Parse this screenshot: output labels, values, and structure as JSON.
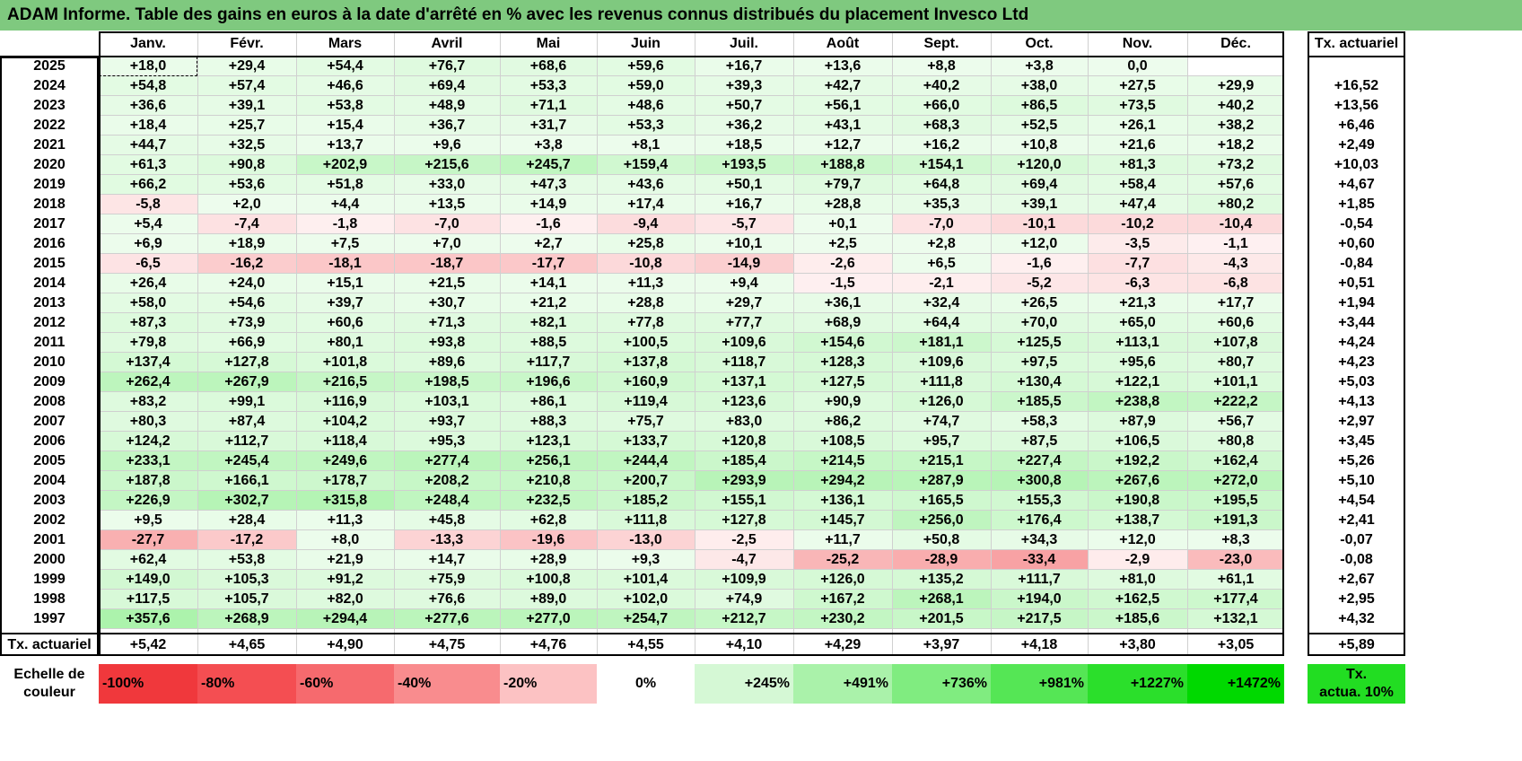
{
  "title": "ADAM Informe. Table des gains en euros à la date d'arrêté en % avec les revenus connus distribués du placement Invesco Ltd",
  "months": [
    "Janv.",
    "Févr.",
    "Mars",
    "Avril",
    "Mai",
    "Juin",
    "Juil.",
    "Août",
    "Sept.",
    "Oct.",
    "Nov.",
    "Déc."
  ],
  "rate_header": "Tx. actuariel",
  "rows": [
    {
      "year": "2025",
      "values": [
        "+18,0",
        "+29,4",
        "+54,4",
        "+76,7",
        "+68,6",
        "+59,6",
        "+16,7",
        "+13,6",
        "+8,8",
        "+3,8",
        "0,0",
        ""
      ],
      "rate": ""
    },
    {
      "year": "2024",
      "values": [
        "+54,8",
        "+57,4",
        "+46,6",
        "+69,4",
        "+53,3",
        "+59,0",
        "+39,3",
        "+42,7",
        "+40,2",
        "+38,0",
        "+27,5",
        "+29,9"
      ],
      "rate": "+16,52"
    },
    {
      "year": "2023",
      "values": [
        "+36,6",
        "+39,1",
        "+53,8",
        "+48,9",
        "+71,1",
        "+48,6",
        "+50,7",
        "+56,1",
        "+66,0",
        "+86,5",
        "+73,5",
        "+40,2"
      ],
      "rate": "+13,56"
    },
    {
      "year": "2022",
      "values": [
        "+18,4",
        "+25,7",
        "+15,4",
        "+36,7",
        "+31,7",
        "+53,3",
        "+36,2",
        "+43,1",
        "+68,3",
        "+52,5",
        "+26,1",
        "+38,2"
      ],
      "rate": "+6,46"
    },
    {
      "year": "2021",
      "values": [
        "+44,7",
        "+32,5",
        "+13,7",
        "+9,6",
        "+3,8",
        "+8,1",
        "+18,5",
        "+12,7",
        "+16,2",
        "+10,8",
        "+21,6",
        "+18,2"
      ],
      "rate": "+2,49"
    },
    {
      "year": "2020",
      "values": [
        "+61,3",
        "+90,8",
        "+202,9",
        "+215,6",
        "+245,7",
        "+159,4",
        "+193,5",
        "+188,8",
        "+154,1",
        "+120,0",
        "+81,3",
        "+73,2"
      ],
      "rate": "+10,03"
    },
    {
      "year": "2019",
      "values": [
        "+66,2",
        "+53,6",
        "+51,8",
        "+33,0",
        "+47,3",
        "+43,6",
        "+50,1",
        "+79,7",
        "+64,8",
        "+69,4",
        "+58,4",
        "+57,6"
      ],
      "rate": "+4,67"
    },
    {
      "year": "2018",
      "values": [
        "-5,8",
        "+2,0",
        "+4,4",
        "+13,5",
        "+14,9",
        "+17,4",
        "+16,7",
        "+28,8",
        "+35,3",
        "+39,1",
        "+47,4",
        "+80,2"
      ],
      "rate": "+1,85"
    },
    {
      "year": "2017",
      "values": [
        "+5,4",
        "-7,4",
        "-1,8",
        "-7,0",
        "-1,6",
        "-9,4",
        "-5,7",
        "+0,1",
        "-7,0",
        "-10,1",
        "-10,2",
        "-10,4"
      ],
      "rate": "-0,54"
    },
    {
      "year": "2016",
      "values": [
        "+6,9",
        "+18,9",
        "+7,5",
        "+7,0",
        "+2,7",
        "+25,8",
        "+10,1",
        "+2,5",
        "+2,8",
        "+12,0",
        "-3,5",
        "-1,1"
      ],
      "rate": "+0,60"
    },
    {
      "year": "2015",
      "values": [
        "-6,5",
        "-16,2",
        "-18,1",
        "-18,7",
        "-17,7",
        "-10,8",
        "-14,9",
        "-2,6",
        "+6,5",
        "-1,6",
        "-7,7",
        "-4,3"
      ],
      "rate": "-0,84"
    },
    {
      "year": "2014",
      "values": [
        "+26,4",
        "+24,0",
        "+15,1",
        "+21,5",
        "+14,1",
        "+11,3",
        "+9,4",
        "-1,5",
        "-2,1",
        "-5,2",
        "-6,3",
        "-6,8"
      ],
      "rate": "+0,51"
    },
    {
      "year": "2013",
      "values": [
        "+58,0",
        "+54,6",
        "+39,7",
        "+30,7",
        "+21,2",
        "+28,8",
        "+29,7",
        "+36,1",
        "+32,4",
        "+26,5",
        "+21,3",
        "+17,7"
      ],
      "rate": "+1,94"
    },
    {
      "year": "2012",
      "values": [
        "+87,3",
        "+73,9",
        "+60,6",
        "+71,3",
        "+82,1",
        "+77,8",
        "+77,7",
        "+68,9",
        "+64,4",
        "+70,0",
        "+65,0",
        "+60,6"
      ],
      "rate": "+3,44"
    },
    {
      "year": "2011",
      "values": [
        "+79,8",
        "+66,9",
        "+80,1",
        "+93,8",
        "+88,5",
        "+100,5",
        "+109,6",
        "+154,6",
        "+181,1",
        "+125,5",
        "+113,1",
        "+107,8"
      ],
      "rate": "+4,24"
    },
    {
      "year": "2010",
      "values": [
        "+137,4",
        "+127,8",
        "+101,8",
        "+89,6",
        "+117,7",
        "+137,8",
        "+118,7",
        "+128,3",
        "+109,6",
        "+97,5",
        "+95,6",
        "+80,7"
      ],
      "rate": "+4,23"
    },
    {
      "year": "2009",
      "values": [
        "+262,4",
        "+267,9",
        "+216,5",
        "+198,5",
        "+196,6",
        "+160,9",
        "+137,1",
        "+127,5",
        "+111,8",
        "+130,4",
        "+122,1",
        "+101,1"
      ],
      "rate": "+5,03"
    },
    {
      "year": "2008",
      "values": [
        "+83,2",
        "+99,1",
        "+116,9",
        "+103,1",
        "+86,1",
        "+119,4",
        "+123,6",
        "+90,9",
        "+126,0",
        "+185,5",
        "+238,8",
        "+222,2"
      ],
      "rate": "+4,13"
    },
    {
      "year": "2007",
      "values": [
        "+80,3",
        "+87,4",
        "+104,2",
        "+93,7",
        "+88,3",
        "+75,7",
        "+83,0",
        "+86,2",
        "+74,7",
        "+58,3",
        "+87,9",
        "+56,7"
      ],
      "rate": "+2,97"
    },
    {
      "year": "2006",
      "values": [
        "+124,2",
        "+112,7",
        "+118,4",
        "+95,3",
        "+123,1",
        "+133,7",
        "+120,8",
        "+108,5",
        "+95,7",
        "+87,5",
        "+106,5",
        "+80,8"
      ],
      "rate": "+3,45"
    },
    {
      "year": "2005",
      "values": [
        "+233,1",
        "+245,4",
        "+249,6",
        "+277,4",
        "+256,1",
        "+244,4",
        "+185,4",
        "+214,5",
        "+215,1",
        "+227,4",
        "+192,2",
        "+162,4"
      ],
      "rate": "+5,26"
    },
    {
      "year": "2004",
      "values": [
        "+187,8",
        "+166,1",
        "+178,7",
        "+208,2",
        "+210,8",
        "+200,7",
        "+293,9",
        "+294,2",
        "+287,9",
        "+300,8",
        "+267,6",
        "+272,0"
      ],
      "rate": "+5,10"
    },
    {
      "year": "2003",
      "values": [
        "+226,9",
        "+302,7",
        "+315,8",
        "+248,4",
        "+232,5",
        "+185,2",
        "+155,1",
        "+136,1",
        "+165,5",
        "+155,3",
        "+190,8",
        "+195,5"
      ],
      "rate": "+4,54"
    },
    {
      "year": "2002",
      "values": [
        "+9,5",
        "+28,4",
        "+11,3",
        "+45,8",
        "+62,8",
        "+111,8",
        "+127,8",
        "+145,7",
        "+256,0",
        "+176,4",
        "+138,7",
        "+191,3"
      ],
      "rate": "+2,41"
    },
    {
      "year": "2001",
      "values": [
        "-27,7",
        "-17,2",
        "+8,0",
        "-13,3",
        "-19,6",
        "-13,0",
        "-2,5",
        "+11,7",
        "+50,8",
        "+34,3",
        "+12,0",
        "+8,3"
      ],
      "rate": "-0,07"
    },
    {
      "year": "2000",
      "values": [
        "+62,4",
        "+53,8",
        "+21,9",
        "+14,7",
        "+28,9",
        "+9,3",
        "-4,7",
        "-25,2",
        "-28,9",
        "-33,4",
        "-2,9",
        "-23,0"
      ],
      "rate": "-0,08"
    },
    {
      "year": "1999",
      "values": [
        "+149,0",
        "+105,3",
        "+91,2",
        "+75,9",
        "+100,8",
        "+101,4",
        "+109,9",
        "+126,0",
        "+135,2",
        "+111,7",
        "+81,0",
        "+61,1"
      ],
      "rate": "+2,67"
    },
    {
      "year": "1998",
      "values": [
        "+117,5",
        "+105,7",
        "+82,0",
        "+76,6",
        "+89,0",
        "+102,0",
        "+74,9",
        "+167,2",
        "+268,1",
        "+194,0",
        "+162,5",
        "+177,4"
      ],
      "rate": "+2,95"
    },
    {
      "year": "1997",
      "values": [
        "+357,6",
        "+268,9",
        "+294,4",
        "+277,6",
        "+277,0",
        "+254,7",
        "+212,7",
        "+230,2",
        "+201,5",
        "+217,5",
        "+185,6",
        "+132,1"
      ],
      "rate": "+4,32"
    }
  ],
  "footer": {
    "label": "Tx. actuariel",
    "values": [
      "+5,42",
      "+4,65",
      "+4,90",
      "+4,75",
      "+4,76",
      "+4,55",
      "+4,10",
      "+4,29",
      "+3,97",
      "+4,18",
      "+3,80",
      "+3,05"
    ],
    "rate": "+5,89"
  },
  "legend": {
    "label_line1": "Echelle de",
    "label_line2": "couleur",
    "items": [
      {
        "text": "-100%",
        "color": "#f0383c",
        "align": "left"
      },
      {
        "text": "-80%",
        "color": "#f44e52",
        "align": "left"
      },
      {
        "text": "-60%",
        "color": "#f66a6e",
        "align": "left"
      },
      {
        "text": "-40%",
        "color": "#f98c8e",
        "align": "left"
      },
      {
        "text": "-20%",
        "color": "#fcc2c3",
        "align": "left"
      },
      {
        "text": "0%",
        "color": "#ffffff",
        "align": "center"
      },
      {
        "text": "+245%",
        "color": "#d5f8d5",
        "align": "right"
      },
      {
        "text": "+491%",
        "color": "#aaf2aa",
        "align": "right"
      },
      {
        "text": "+736%",
        "color": "#80ec80",
        "align": "right"
      },
      {
        "text": "+981%",
        "color": "#55e655",
        "align": "right"
      },
      {
        "text": "+1227%",
        "color": "#2bdf2b",
        "align": "right"
      },
      {
        "text": "+1472%",
        "color": "#00d900",
        "align": "right"
      }
    ],
    "box_line1": "Tx.",
    "box_line2": "actua. 10%",
    "box_color": "#22dd22"
  },
  "colors": {
    "title_bg": "#7fc97f",
    "negative": "#f0383c",
    "positive": "#00d900",
    "neutral": "#ffffff"
  }
}
